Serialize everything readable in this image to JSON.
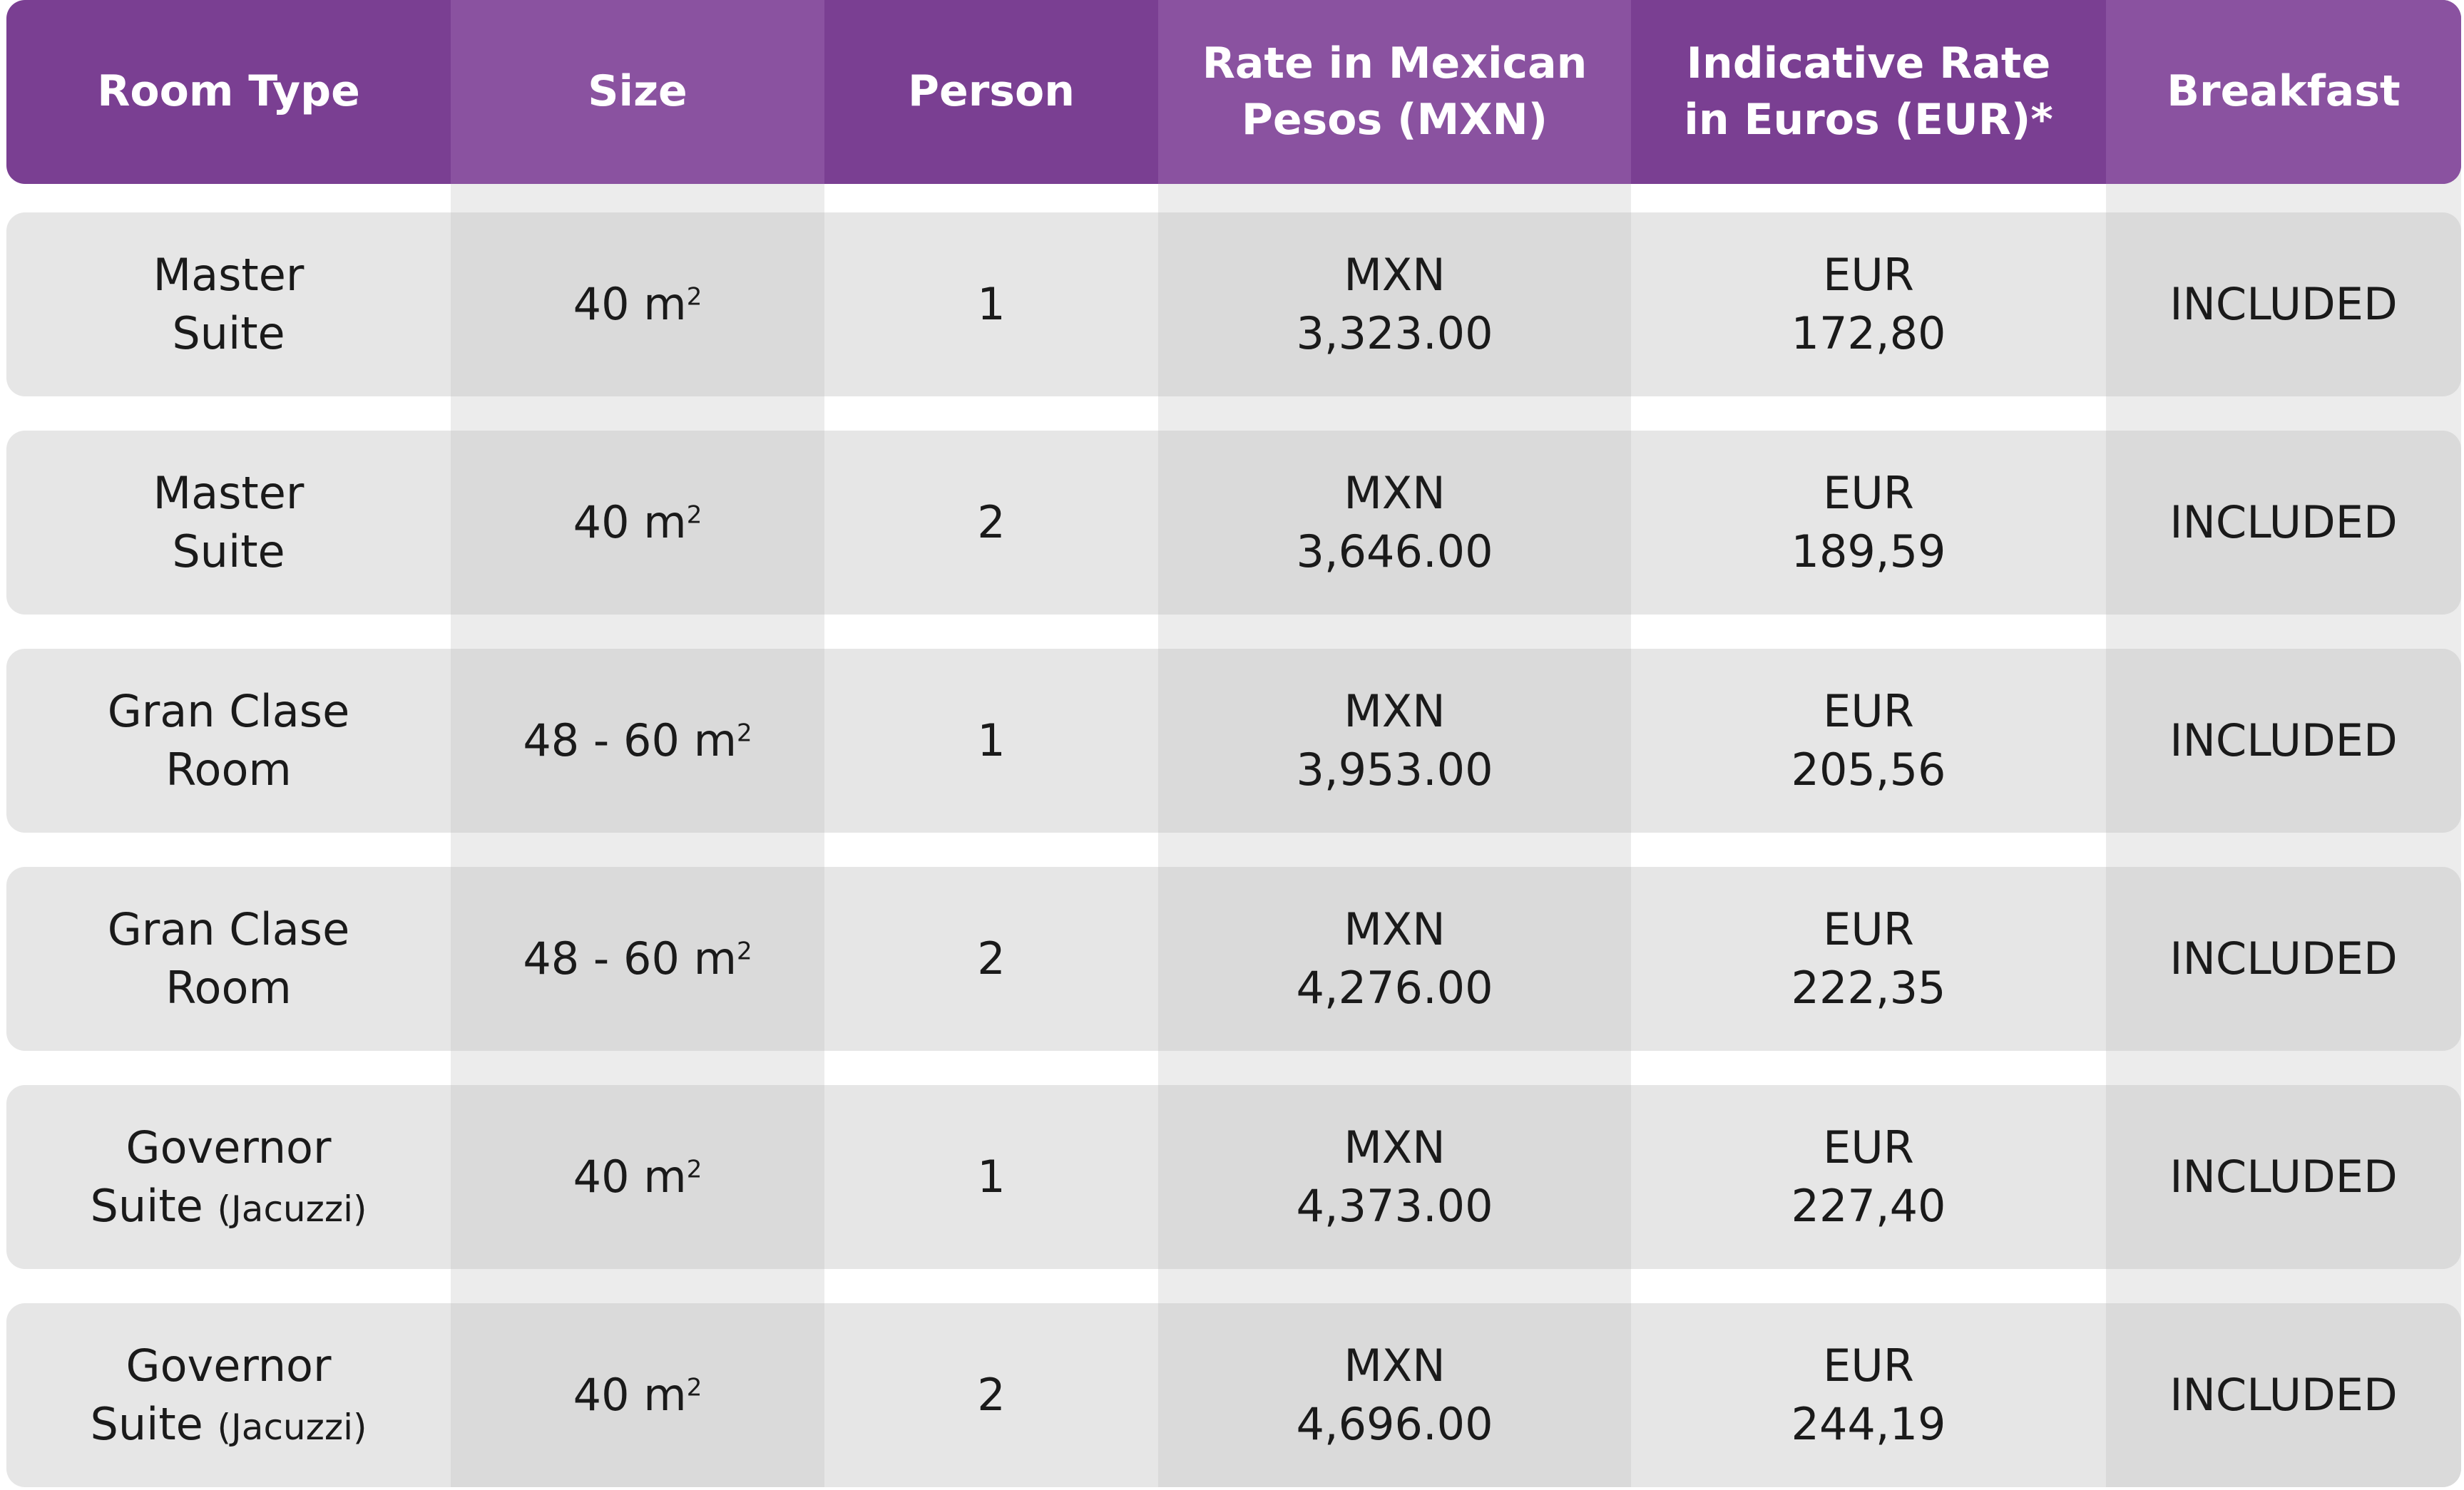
{
  "header": {
    "room_type": "Room Type",
    "size": "Size",
    "person": "Person",
    "rate_mxn": "Rate in Mexican\nPesos (MXN)",
    "rate_eur": "Indicative Rate\nin Euros (EUR)*",
    "breakfast": "Breakfast"
  },
  "size_unit": "m",
  "size_unit_sup": "2",
  "rows": [
    {
      "room_line1": "Master",
      "room_line2": "Suite",
      "room_note": "",
      "size": "40",
      "person": "1",
      "mxn": "MXN\n3,323.00",
      "eur": "EUR\n172,80",
      "breakfast": "INCLUDED"
    },
    {
      "room_line1": "Master",
      "room_line2": "Suite",
      "room_note": "",
      "size": "40",
      "person": "2",
      "mxn": "MXN\n3,646.00",
      "eur": "EUR\n189,59",
      "breakfast": "INCLUDED"
    },
    {
      "room_line1": "Gran Clase",
      "room_line2": "Room",
      "room_note": "",
      "size": "48 - 60",
      "person": "1",
      "mxn": "MXN\n3,953.00",
      "eur": "EUR\n205,56",
      "breakfast": "INCLUDED"
    },
    {
      "room_line1": "Gran Clase",
      "room_line2": "Room",
      "room_note": "",
      "size": "48 - 60",
      "person": "2",
      "mxn": "MXN\n4,276.00",
      "eur": "EUR\n222,35",
      "breakfast": "INCLUDED"
    },
    {
      "room_line1": "Governor",
      "room_line2": "Suite",
      "room_note": "(Jacuzzi)",
      "size": "40",
      "person": "1",
      "mxn": "MXN\n4,373.00",
      "eur": "EUR\n227,40",
      "breakfast": "INCLUDED"
    },
    {
      "room_line1": "Governor",
      "room_line2": "Suite",
      "room_note": "(Jacuzzi)",
      "size": "40",
      "person": "2",
      "mxn": "MXN\n4,696.00",
      "eur": "EUR\n244,19",
      "breakfast": "INCLUDED"
    }
  ]
}
